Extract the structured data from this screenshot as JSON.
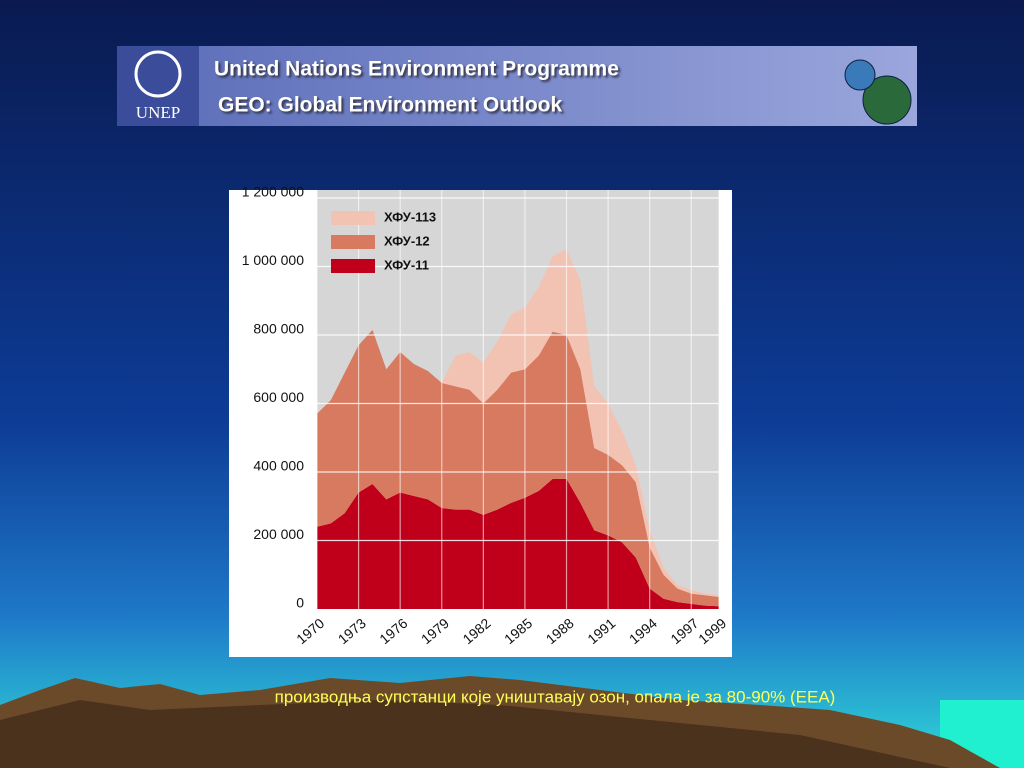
{
  "header": {
    "logo": "UNEP",
    "line1": "United Nations Environment Programme",
    "line2": "GEO: Global Environment Outlook"
  },
  "caption": "производња супстанци које уништавају озон, опала је за 80-90% (ЕЕА)",
  "chart_data": {
    "type": "stacked-area",
    "x": [
      1970,
      1971,
      1972,
      1973,
      1974,
      1975,
      1976,
      1977,
      1978,
      1979,
      1980,
      1981,
      1982,
      1983,
      1984,
      1985,
      1986,
      1987,
      1988,
      1989,
      1990,
      1991,
      1992,
      1993,
      1994,
      1995,
      1996,
      1997,
      1998,
      1999
    ],
    "series": [
      {
        "name": "ХФУ-11",
        "color": "#c0001a",
        "values": [
          240000,
          250000,
          280000,
          340000,
          365000,
          320000,
          340000,
          330000,
          320000,
          295000,
          290000,
          290000,
          275000,
          290000,
          310000,
          325000,
          345000,
          380000,
          380000,
          310000,
          230000,
          215000,
          195000,
          150000,
          60000,
          30000,
          20000,
          15000,
          10000,
          8000
        ]
      },
      {
        "name": "ХФУ-12",
        "color": "#d87a60",
        "values": [
          330000,
          360000,
          410000,
          430000,
          450000,
          380000,
          410000,
          385000,
          375000,
          365000,
          360000,
          350000,
          325000,
          350000,
          380000,
          375000,
          395000,
          430000,
          420000,
          390000,
          240000,
          235000,
          225000,
          220000,
          120000,
          70000,
          40000,
          30000,
          30000,
          27000
        ]
      },
      {
        "name": "ХФУ-113",
        "color": "#f2c2b2",
        "values": [
          0,
          0,
          0,
          0,
          0,
          0,
          0,
          0,
          0,
          0,
          90000,
          110000,
          120000,
          140000,
          170000,
          180000,
          200000,
          220000,
          250000,
          260000,
          180000,
          150000,
          100000,
          50000,
          50000,
          20000,
          10000,
          10000,
          5000,
          5000
        ]
      }
    ],
    "xlim": [
      1970,
      1999
    ],
    "xticks": [
      1970,
      1973,
      1976,
      1979,
      1982,
      1985,
      1988,
      1991,
      1994,
      1997,
      1999
    ],
    "ylim": [
      0,
      1200000
    ],
    "yticks": [
      0,
      {
        "value": 200000,
        "label": "200 000"
      },
      {
        "value": 400000,
        "label": "400 000"
      },
      {
        "value": 600000,
        "label": "600 000"
      },
      {
        "value": 800000,
        "label": "800 000"
      },
      {
        "value": 1000000,
        "label": "1 000 000"
      },
      {
        "value": 1200000,
        "label": "1 200 000"
      }
    ],
    "grid": true,
    "legend": "top-left"
  }
}
